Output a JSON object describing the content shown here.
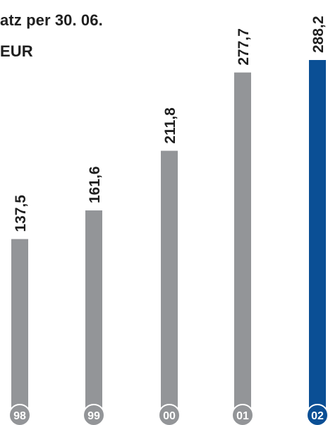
{
  "chart_data": {
    "type": "bar",
    "title_lines": [
      "atz per 30. 06.",
      "EUR"
    ],
    "categories": [
      "98",
      "99",
      "00",
      "01",
      "02"
    ],
    "values": [
      137.5,
      161.6,
      211.8,
      277.7,
      288.2
    ],
    "value_labels": [
      "137,5",
      "161,6",
      "211,8",
      "277,7",
      "288,2"
    ],
    "ylim": [
      0,
      300
    ],
    "grid": false,
    "legend": "none",
    "colors": {
      "bar": "#939598",
      "highlight": "#0a4f95",
      "label_text": "#1f1f1f",
      "badge_text": "#ffffff"
    },
    "highlight_category": "02"
  }
}
